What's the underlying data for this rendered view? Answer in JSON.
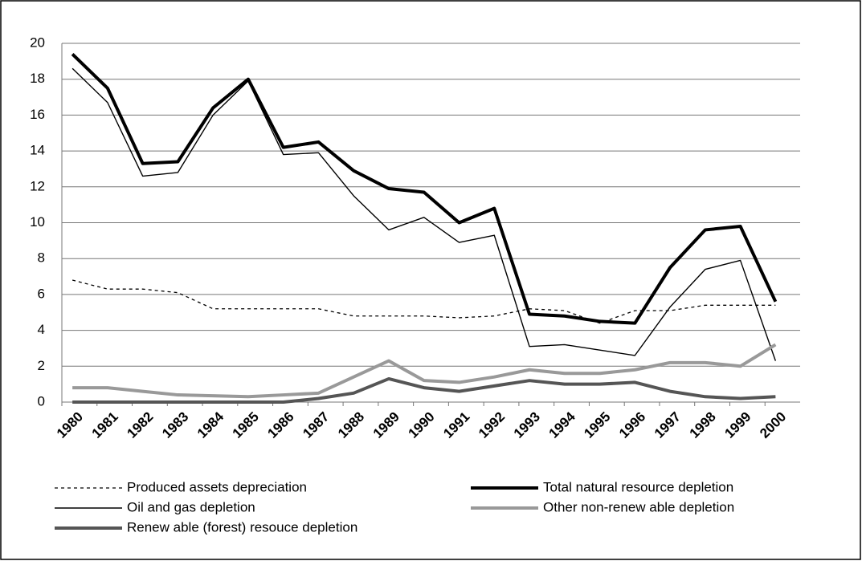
{
  "chart_data": {
    "type": "line",
    "categories": [
      "1980",
      "1981",
      "1982",
      "1983",
      "1984",
      "1985",
      "1986",
      "1987",
      "1988",
      "1989",
      "1990",
      "1991",
      "1992",
      "1993",
      "1994",
      "1995",
      "1996",
      "1997",
      "1998",
      "1999",
      "2000"
    ],
    "ylim": [
      0,
      20
    ],
    "yticks": [
      0,
      2,
      4,
      6,
      8,
      10,
      12,
      14,
      16,
      18,
      20
    ],
    "grid": true,
    "series": [
      {
        "name": "Produced assets depreciation",
        "color": "#000000",
        "style": "dotted",
        "values": [
          6.8,
          6.3,
          6.3,
          6.1,
          5.2,
          5.2,
          5.2,
          5.2,
          4.8,
          4.8,
          4.8,
          4.7,
          4.8,
          5.2,
          5.1,
          4.4,
          5.1,
          5.1,
          5.4,
          5.4,
          5.4
        ]
      },
      {
        "name": "Total natural resource depletion",
        "color": "#000000",
        "style": "thick",
        "values": [
          19.4,
          17.5,
          13.3,
          13.4,
          16.4,
          18.0,
          14.2,
          14.5,
          12.9,
          11.9,
          11.7,
          10.0,
          10.8,
          4.9,
          4.8,
          4.5,
          4.4,
          7.5,
          9.6,
          9.8,
          5.6
        ]
      },
      {
        "name": "Oil and gas depletion",
        "color": "#000000",
        "style": "thin",
        "values": [
          18.6,
          16.7,
          12.6,
          12.8,
          16.0,
          17.9,
          13.8,
          13.9,
          11.5,
          9.6,
          10.3,
          8.9,
          9.3,
          3.1,
          3.2,
          2.9,
          2.6,
          5.3,
          7.4,
          7.9,
          2.3
        ]
      },
      {
        "name": "Other non-renew able depletion",
        "color": "#999999",
        "style": "thick",
        "values": [
          0.8,
          0.8,
          0.6,
          0.4,
          0.35,
          0.3,
          0.4,
          0.5,
          1.4,
          2.3,
          1.2,
          1.1,
          1.4,
          1.8,
          1.6,
          1.6,
          1.8,
          2.2,
          2.2,
          2.0,
          3.2
        ]
      },
      {
        "name": "Renew able (forest) resouce depletion",
        "color": "#555555",
        "style": "thick",
        "values": [
          0,
          0,
          0,
          0,
          0,
          0,
          0,
          0.2,
          0.5,
          1.3,
          0.8,
          0.6,
          0.9,
          1.2,
          1.0,
          1.0,
          1.1,
          0.6,
          0.3,
          0.2,
          0.3
        ]
      }
    ]
  }
}
